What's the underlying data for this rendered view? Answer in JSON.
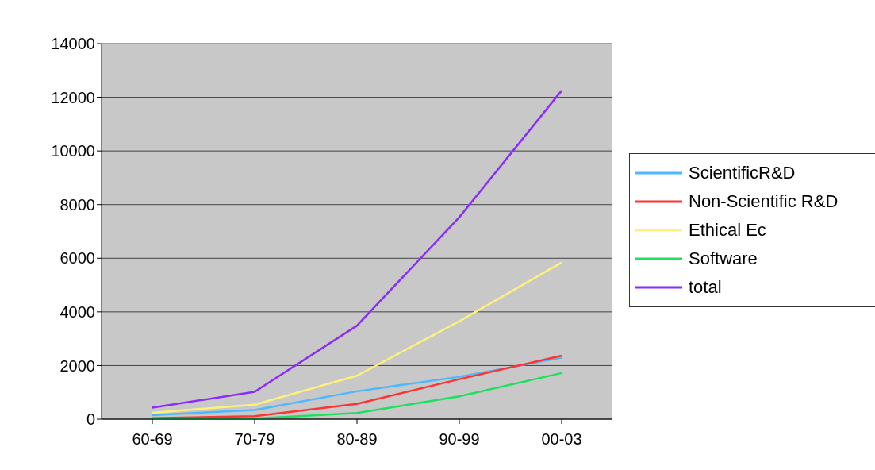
{
  "chart_data": {
    "type": "line",
    "categories": [
      "60-69",
      "70-79",
      "80-89",
      "90-99",
      "00-03"
    ],
    "series": [
      {
        "name": "ScientificR&D",
        "color": "#4db8ff",
        "values": [
          150,
          340,
          1040,
          1580,
          2290
        ]
      },
      {
        "name": "Non-Scientific R&D",
        "color": "#ff3333",
        "values": [
          40,
          110,
          570,
          1490,
          2370
        ]
      },
      {
        "name": "Ethical Ec",
        "color": "#fff07a",
        "values": [
          240,
          540,
          1620,
          3650,
          5840
        ]
      },
      {
        "name": "Software",
        "color": "#1ee060",
        "values": [
          10,
          20,
          230,
          850,
          1720
        ]
      },
      {
        "name": "total",
        "color": "#8b2cff",
        "values": [
          430,
          1020,
          3490,
          7530,
          12250
        ]
      }
    ],
    "ylim": [
      0,
      14000
    ],
    "yticks": [
      0,
      2000,
      4000,
      6000,
      8000,
      10000,
      12000,
      14000
    ],
    "grid": "y",
    "legend": "right",
    "marker": "none",
    "line_style": "solid"
  }
}
